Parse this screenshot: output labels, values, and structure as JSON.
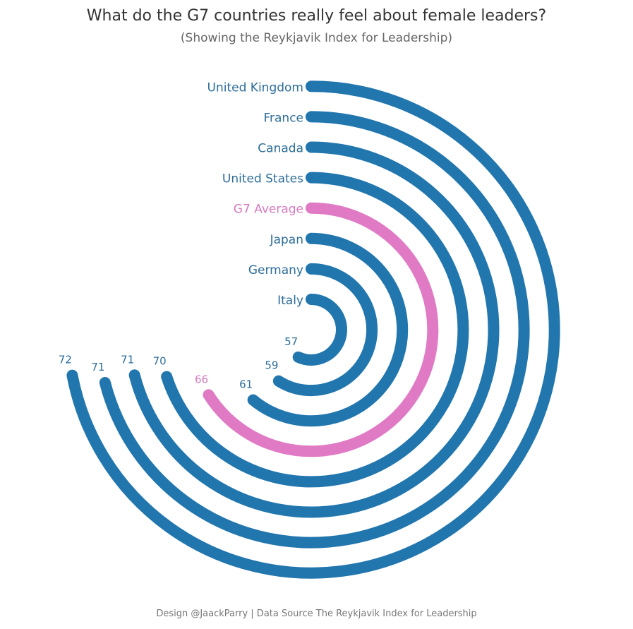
{
  "title": "What do the G7 countries really feel about female leaders?",
  "subtitle": "(Showing the Reykjavik Index for Leadership)",
  "footer": "Design @JaackParry | Data Source The Reykjavik Index for Leadership",
  "chart_data": {
    "type": "radial-bar",
    "scale_max": 100,
    "categories": [
      "Italy",
      "Germany",
      "Japan",
      "G7 Average",
      "United States",
      "Canada",
      "France",
      "United Kingdom"
    ],
    "values": [
      57,
      59,
      61,
      66,
      70,
      71,
      71,
      72
    ],
    "colors": [
      "#2176ae",
      "#2176ae",
      "#2176ae",
      "#e07ac4",
      "#2176ae",
      "#2176ae",
      "#2176ae",
      "#2176ae"
    ],
    "label_colors": [
      "#2d6d99",
      "#2d6d99",
      "#2d6d99",
      "#d67bbf",
      "#2d6d99",
      "#2d6d99",
      "#2d6d99",
      "#2d6d99"
    ]
  }
}
